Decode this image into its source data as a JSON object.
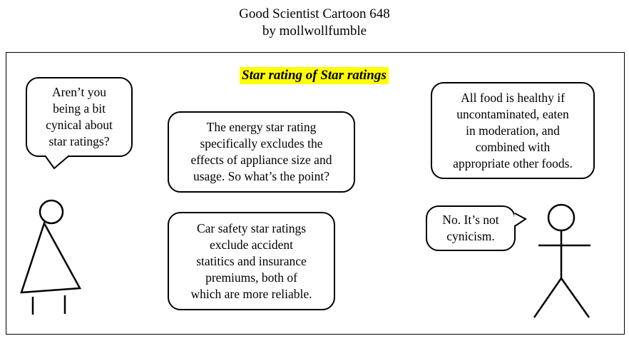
{
  "header": {
    "title": "Good Scientist Cartoon 648",
    "byline": "by mollwollfumble"
  },
  "panel": {
    "title": "Star rating of Star ratings",
    "bubbles": {
      "left_character": [
        "Aren’t you",
        "being a bit",
        "cynical about",
        "star ratings?"
      ],
      "energy": [
        "The energy star rating",
        "specifically  excludes the",
        "effects of appliance size and",
        "usage. So what’s the point?"
      ],
      "car": [
        "Car safety star ratings",
        "exclude accident",
        "statitics and insurance",
        "premiums, both of",
        "which are more reliable."
      ],
      "food": [
        "All food is healthy if",
        "uncontaminated, eaten",
        "in moderation, and",
        "combined with",
        "appropriate other foods."
      ],
      "right_character": [
        "No. It’s not",
        "cynicism."
      ]
    }
  },
  "colors": {
    "title_highlight": "#ffff00",
    "ink": "#000000",
    "background": "#ffffff"
  }
}
